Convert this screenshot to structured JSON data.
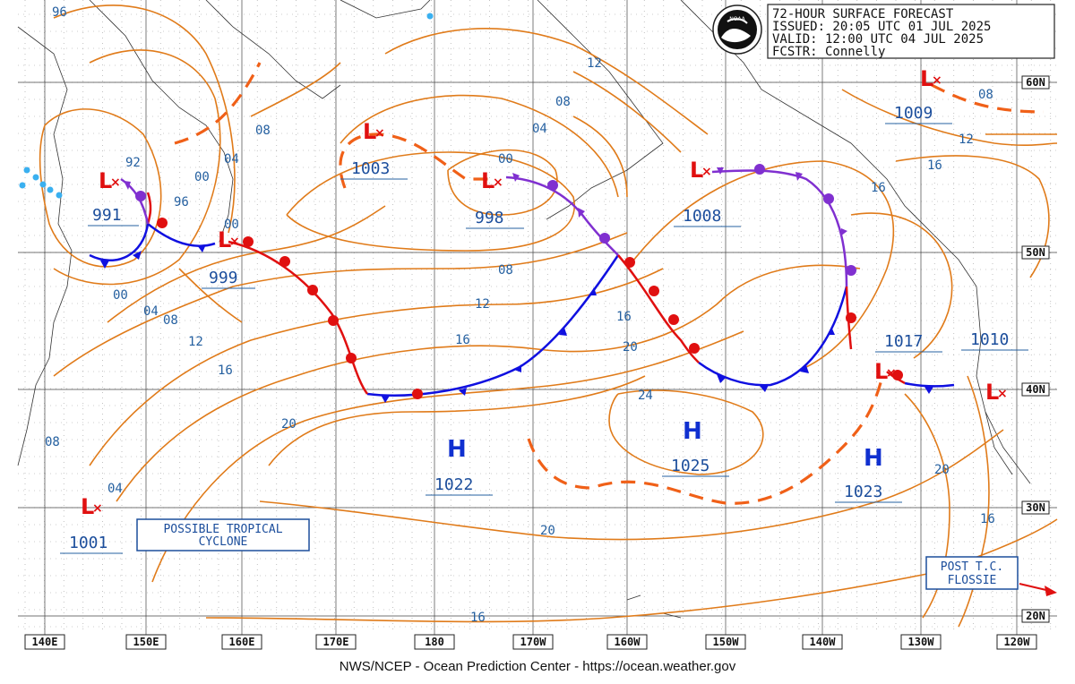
{
  "header": {
    "title": "72-HOUR SURFACE FORECAST",
    "issued": "ISSUED: 20:05 UTC 01 JUL 2025",
    "valid": "VALID:  12:00 UTC 04 JUL 2025",
    "forecaster": "FCSTR:  Connelly",
    "logo_text": "NOAA"
  },
  "footer": {
    "credit": "NWS/NCEP - Ocean Prediction Center - https://ocean.weather.gov"
  },
  "latitudes": [
    "60N",
    "50N",
    "40N",
    "30N",
    "20N"
  ],
  "longitudes": [
    "140E",
    "150E",
    "160E",
    "170E",
    "180",
    "170W",
    "160W",
    "150W",
    "140W",
    "130W",
    "120W"
  ],
  "lows": [
    {
      "symbol": "L",
      "pressure": "991"
    },
    {
      "symbol": "L",
      "pressure": "999"
    },
    {
      "symbol": "L",
      "pressure": "1003"
    },
    {
      "symbol": "L",
      "pressure": "998"
    },
    {
      "symbol": "L",
      "pressure": "1008"
    },
    {
      "symbol": "L",
      "pressure": "1009"
    },
    {
      "symbol": "L",
      "pressure": "1017"
    },
    {
      "symbol": "L",
      "pressure": "1010"
    },
    {
      "symbol": "L",
      "pressure": "1001"
    }
  ],
  "highs": [
    {
      "symbol": "H",
      "pressure": "1022"
    },
    {
      "symbol": "H",
      "pressure": "1025"
    },
    {
      "symbol": "H",
      "pressure": "1023"
    }
  ],
  "isobar_labels": [
    "96",
    "92",
    "96",
    "00",
    "04",
    "08",
    "00",
    "04",
    "08",
    "12",
    "16",
    "00",
    "04",
    "08",
    "12",
    "16",
    "20",
    "24",
    "20",
    "20",
    "16",
    "16",
    "12",
    "12",
    "16",
    "08",
    "04",
    "08",
    "00",
    "16",
    "20",
    "16",
    "08"
  ],
  "callouts": {
    "tropical_line1": "POSSIBLE TROPICAL",
    "tropical_line2": "CYCLONE",
    "post_line1": "POST T.C.",
    "post_line2": "FLOSSIE"
  },
  "colors": {
    "isobar": "#e07b1a",
    "trough": "#f06018",
    "cold_front": "#1010e0",
    "warm_front": "#e01010",
    "occluded_front": "#8030d0",
    "low": "#e01010",
    "high": "#1030d0",
    "label": "#1c4e9c"
  }
}
